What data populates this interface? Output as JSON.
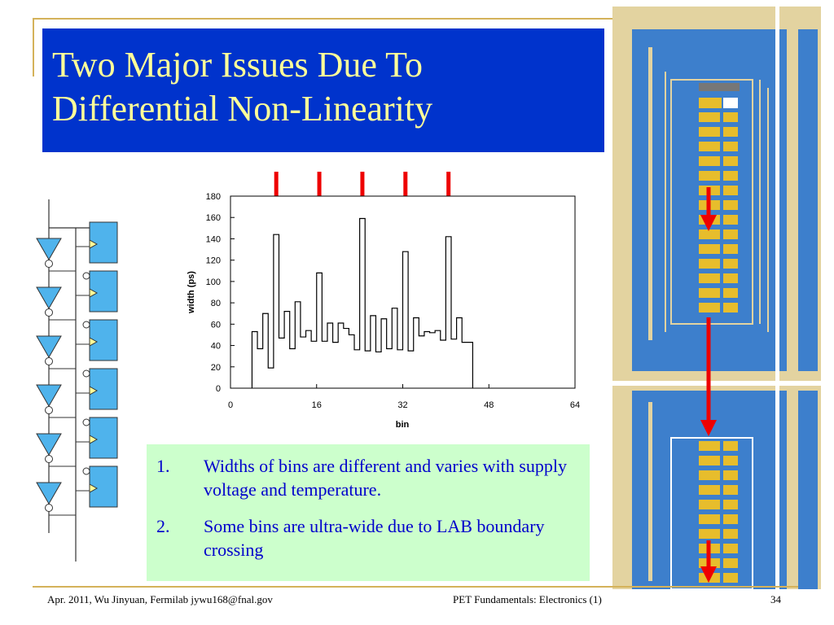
{
  "title": "Two Major Issues Due To Differential Non-Linearity",
  "notes": [
    {
      "number": "1.",
      "text": "Widths of bins are different and varies with supply voltage and temperature."
    },
    {
      "number": "2.",
      "text": "Some bins are ultra-wide due to LAB boundary crossing"
    }
  ],
  "footer": {
    "left": "Apr. 2011, Wu Jinyuan, Fermilab jywu168@fnal.gov",
    "center": "PET Fundamentals: Electronics (1)",
    "page": "34"
  },
  "colors": {
    "title_bg": "#0033cc",
    "title_text": "#ffff99",
    "notes_bg": "#ccffcc",
    "notes_text": "#0000cc",
    "accent_lines": "#d4b25a",
    "arrow": "#ee0000",
    "buffer_fill": "#4fb3ec",
    "chip_blue": "#3d7fcc",
    "chip_frame": "#e3d3a0",
    "chip_cell": "#e7bd2c"
  },
  "chart_data": {
    "type": "line",
    "xlabel": "bin",
    "ylabel": "width (ps)",
    "xlim": [
      0,
      64
    ],
    "ylim": [
      0,
      180
    ],
    "xticks": [
      0,
      16,
      32,
      48,
      64
    ],
    "yticks": [
      0,
      20,
      40,
      60,
      80,
      100,
      120,
      140,
      160,
      180
    ],
    "grid": false,
    "step": true,
    "bins": [
      4,
      5,
      6,
      7,
      8,
      9,
      10,
      11,
      12,
      13,
      14,
      15,
      16,
      17,
      18,
      19,
      20,
      21,
      22,
      23,
      24,
      25,
      26,
      27,
      28,
      29,
      30,
      31,
      32,
      33,
      34,
      35,
      36,
      37,
      38,
      39,
      40,
      41,
      42,
      43,
      44
    ],
    "values": [
      53,
      37,
      70,
      19,
      144,
      47,
      72,
      37,
      81,
      48,
      54,
      44,
      108,
      44,
      61,
      43,
      61,
      56,
      50,
      36,
      159,
      35,
      68,
      34,
      65,
      37,
      75,
      36,
      128,
      35,
      66,
      49,
      53,
      52,
      54,
      45,
      142,
      46,
      66,
      43,
      43
    ],
    "arrow_bins": [
      8.5,
      16.5,
      24.5,
      32.5,
      40.5
    ]
  }
}
